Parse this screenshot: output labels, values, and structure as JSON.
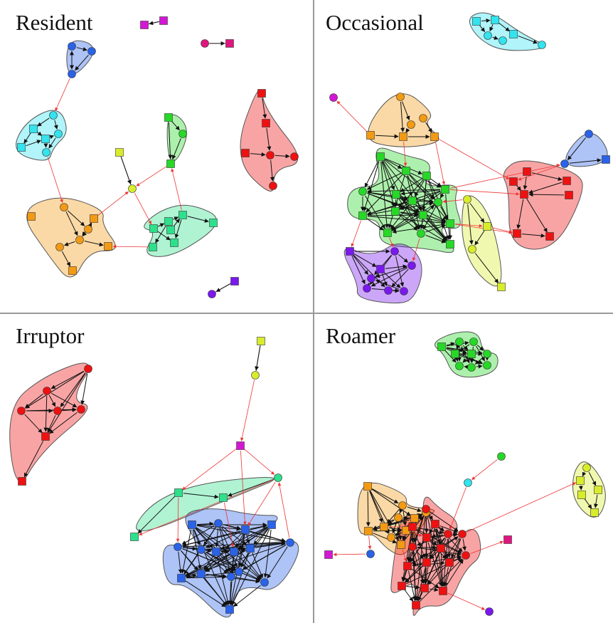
{
  "panels": [
    {
      "key": "resident",
      "title": "Resident"
    },
    {
      "key": "occasional",
      "title": "Occasional"
    },
    {
      "key": "irruptor",
      "title": "Irruptor"
    },
    {
      "key": "roamer",
      "title": "Roamer"
    }
  ],
  "colors": {
    "red": "#ee1111",
    "orange": "#f39a14",
    "yellow": "#d8ec2c",
    "green": "#27d827",
    "mint": "#2ee08c",
    "cyan": "#33e3ee",
    "blue": "#2a62e8",
    "purple": "#7a18ee",
    "magenta": "#d417d4",
    "pink": "#e0157f",
    "divider": "#999999",
    "edge_inter": "#ee3333",
    "edge_intra": "#111111"
  }
}
